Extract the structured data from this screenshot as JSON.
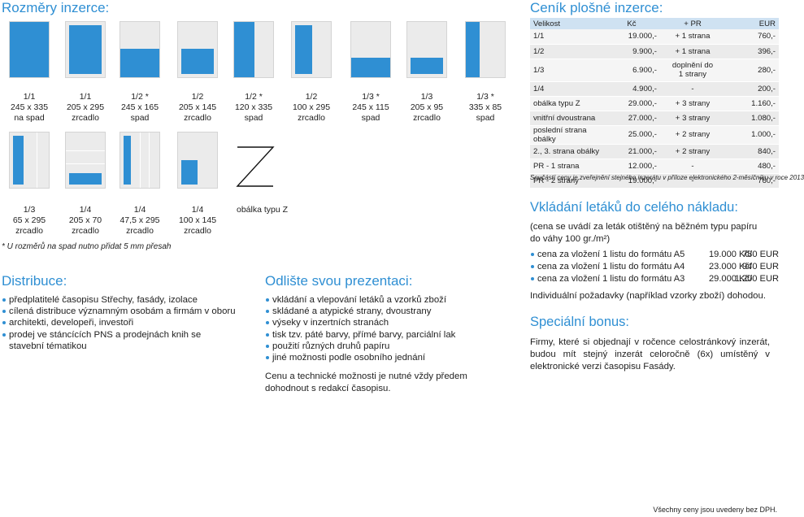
{
  "rozmery": {
    "title": "Rozměry inzerce:",
    "row1": [
      {
        "frac": "1/1",
        "size": "245 x 335",
        "type": "na spad"
      },
      {
        "frac": "1/1",
        "size": "205 x 295",
        "type": "zrcadlo"
      },
      {
        "frac": "1/2 *",
        "size": "245 x 165",
        "type": "spad"
      },
      {
        "frac": "1/2",
        "size": "205 x 145",
        "type": "zrcadlo"
      },
      {
        "frac": "1/2 *",
        "size": "120 x 335",
        "type": "spad"
      },
      {
        "frac": "1/2",
        "size": "100 x 295",
        "type": "zrcadlo"
      },
      {
        "frac": "1/3 *",
        "size": "245 x 115",
        "type": "spad"
      },
      {
        "frac": "1/3",
        "size": "205 x 95",
        "type": "zrcadlo"
      },
      {
        "frac": "1/3 *",
        "size": "335 x 85",
        "type": "spad"
      }
    ],
    "row2": [
      {
        "frac": "1/3",
        "size": "65 x 295",
        "type": "zrcadlo"
      },
      {
        "frac": "1/4",
        "size": "205 x 70",
        "type": "zrcadlo"
      },
      {
        "frac": "1/4",
        "size": "47,5 x 295",
        "type": "zrcadlo"
      },
      {
        "frac": "1/4",
        "size": "100 x 145",
        "type": "zrcadlo"
      }
    ],
    "obalka_label": "obálka typu Z",
    "z_glyph": "Z",
    "footnote": "* U rozměrů na spad nutno přidat 5 mm přesah"
  },
  "distribuce": {
    "title": "Distribuce:",
    "items": [
      "předplatitelé časopisu Střechy, fasády, izolace",
      "cílená distribuce významným osobám a firmám v oboru",
      "architekti, developeři, investoři",
      "prodej ve stáncících PNS a prodejnách knih se stavební tématikou"
    ]
  },
  "odliste": {
    "title": "Odlište svou prezentaci:",
    "items": [
      "vkládání a vlepování letáků a vzorků zboží",
      "skládané a atypické strany, dvoustrany",
      "výseky v inzertních stranách",
      "tisk tzv. páté barvy, přímé barvy, parciální lak",
      "použití různých druhů papíru",
      "jiné možnosti podle osobního jednání"
    ],
    "note": "Cenu a technické možnosti je nutné vždy předem dohodnout s redakcí časopisu."
  },
  "cenik": {
    "title": "Ceník plošné inzerce:",
    "headers": [
      "Velikost",
      "Kč",
      "+ PR",
      "EUR"
    ],
    "rows": [
      [
        "1/1",
        "19.000,-",
        "+ 1 strana",
        "760,-"
      ],
      [
        "1/2",
        "9.900,-",
        "+ 1 strana",
        "396,-"
      ],
      [
        "1/3",
        "6.900,-",
        "doplnění do 1 strany",
        "280,-"
      ],
      [
        "1/4",
        "4.900,-",
        "-",
        "200,-"
      ],
      [
        "obálka typu Z",
        "29.000,-",
        "+ 3 strany",
        "1.160,-"
      ],
      [
        "vnitřní dvoustrana",
        "27.000,-",
        "+ 3 strany",
        "1.080,-"
      ],
      [
        "poslední strana obálky",
        "25.000,-",
        "+ 2 strany",
        "1.000,-"
      ],
      [
        "2., 3. strana obálky",
        "21.000,-",
        "+ 2 strany",
        "840,-"
      ],
      [
        "PR - 1 strana",
        "12.000,-",
        "-",
        "480,-"
      ],
      [
        "PR - 2 strany",
        "19.000,-",
        "-",
        "760,-"
      ]
    ],
    "note": "Součástí ceny je zveřejnění stejného inzerátu v příloze elektronického 2-měsíčníku v roce 2013"
  },
  "letaky": {
    "title": "Vkládání letáků do celého nákladu:",
    "subtitle": "(cena se uvádí za leták otištěný na běžném typu papíru do váhy 100 gr./m²)",
    "items": [
      {
        "label": "cena za vložení 1 listu do formátu A5",
        "kc": "19.000 Kč/",
        "eur": "780 EUR"
      },
      {
        "label": "cena za vložení 1 listu do formátu A4",
        "kc": "23.000 Kč/",
        "eur": "940 EUR"
      },
      {
        "label": "cena za vložení 1 listu do formátu A3",
        "kc": "29.000 Kč/",
        "eur": "1.200 EUR"
      }
    ],
    "note": "Individuální požadavky (například vzorky zboží) dohodou."
  },
  "bonus": {
    "title": "Speciální bonus:",
    "text": "Firmy, které si objednají v ročence celostránkový inzerát, budou mít stejný inzerát celoročně (6x) umístěný v elektronické verzi časopisu Fasády."
  },
  "footer": "Všechny ceny jsou uvedeny bez DPH.",
  "colors": {
    "accent": "#2f8fd3",
    "thumb_bg": "#ebebeb",
    "table_head": "#cfe2f2"
  }
}
